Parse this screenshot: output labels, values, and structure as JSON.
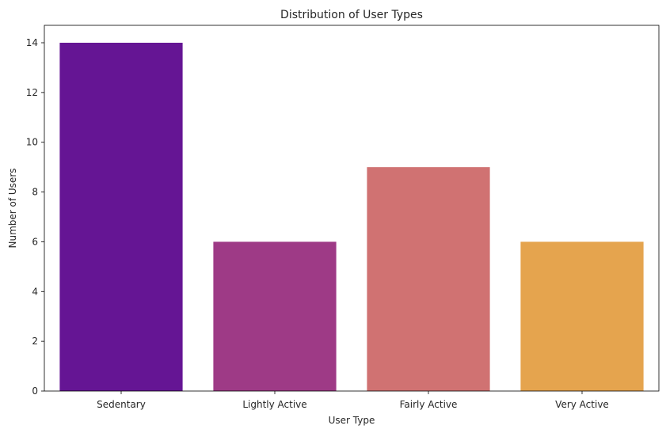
{
  "chart_data": {
    "type": "bar",
    "title": "Distribution of User Types",
    "xlabel": "User Type",
    "ylabel": "Number of Users",
    "categories": [
      "Sedentary",
      "Lightly Active",
      "Fairly Active",
      "Very Active"
    ],
    "values": [
      14,
      6,
      9,
      6
    ],
    "colors": [
      "#651594",
      "#9e3a86",
      "#d07272",
      "#e5a44e"
    ],
    "ylim": [
      0,
      14.7
    ],
    "yticks": [
      0,
      2,
      4,
      6,
      8,
      10,
      12,
      14
    ],
    "grid": false,
    "legend": "none"
  }
}
